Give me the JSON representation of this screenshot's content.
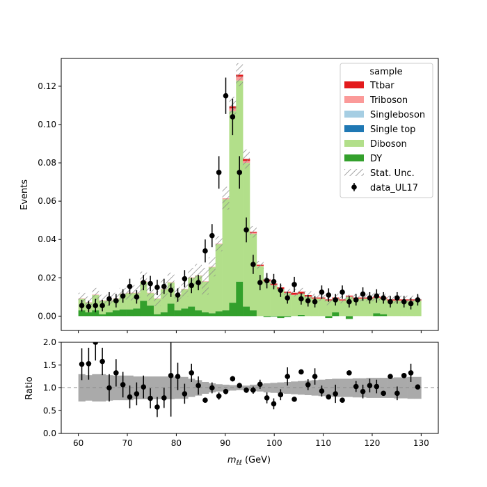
{
  "chart_data": [
    {
      "type": "bar",
      "ylabel": "Events",
      "ylim": [
        -0.0075,
        0.1345
      ],
      "yticks": [
        "0.00",
        "0.02",
        "0.04",
        "0.06",
        "0.08",
        "0.10",
        "0.12"
      ],
      "stacked": true,
      "legend": {
        "title": "sample",
        "placement": "top-right",
        "entries": [
          {
            "label": "Ttbar",
            "color": "#e31a1c"
          },
          {
            "label": "Triboson",
            "color": "#fb9a99"
          },
          {
            "label": "Singleboson",
            "color": "#a6cee3"
          },
          {
            "label": "Single top",
            "color": "#1f78b4"
          },
          {
            "label": "Diboson",
            "color": "#b2df8a"
          },
          {
            "label": "DY",
            "color": "#33a02c"
          },
          {
            "label": "Stat. Unc.",
            "color": "#888888"
          },
          {
            "label": "data_UL17",
            "color": "#000000"
          }
        ]
      },
      "bins": {
        "start": 60,
        "end": 130,
        "width": 1.4
      },
      "series": [
        {
          "name": "DY",
          "color": "#33a02c",
          "values": [
            0.003,
            0.002,
            0.003,
            0.001,
            0.002,
            0.003,
            0.0035,
            0.0035,
            0.004,
            0.008,
            0.0055,
            0.001,
            0.002,
            0.0065,
            0.003,
            0.004,
            0.005,
            0.003,
            0.002,
            0.0015,
            0.0025,
            0.003,
            0.007,
            0.018,
            0.005,
            0.003,
            0.0,
            -0.0005,
            -0.0003,
            -0.001,
            -0.0005,
            0.0,
            0.0005,
            0.0,
            0.0,
            0.0,
            -0.001,
            0.002,
            0.0,
            -0.0015,
            0.0,
            0.0,
            0.0,
            0.0015,
            0.001,
            0.0,
            0.0,
            0.0,
            0.0,
            0.0
          ]
        },
        {
          "name": "Diboson",
          "color": "#b2df8a",
          "values": [
            0.006,
            0.005,
            0.008,
            0.007,
            0.006,
            0.006,
            0.008,
            0.0085,
            0.008,
            0.01,
            0.0065,
            0.008,
            0.012,
            0.011,
            0.008,
            0.01,
            0.015,
            0.018,
            0.016,
            0.024,
            0.035,
            0.058,
            0.1,
            0.105,
            0.075,
            0.04,
            0.026,
            0.018,
            0.016,
            0.014,
            0.012,
            0.011,
            0.011,
            0.01,
            0.009,
            0.009,
            0.008,
            0.007,
            0.008,
            0.01,
            0.009,
            0.009,
            0.009,
            0.008,
            0.008,
            0.008,
            0.008,
            0.008,
            0.008,
            0.008
          ]
        },
        {
          "name": "Single top",
          "color": "#1f78b4",
          "values": [
            0,
            0,
            0,
            0,
            0,
            0,
            0,
            0,
            0,
            0,
            0,
            0,
            0,
            0,
            0,
            0,
            0,
            0,
            0,
            0,
            0,
            0,
            0,
            0,
            0,
            0,
            0,
            0,
            0,
            0,
            0,
            0,
            0,
            0,
            0,
            0,
            0,
            0,
            0,
            0,
            0,
            0,
            0,
            0,
            0,
            0,
            0,
            0,
            0,
            0
          ]
        },
        {
          "name": "Singleboson",
          "color": "#a6cee3",
          "values": [
            0,
            0,
            0,
            0,
            0,
            0,
            0,
            0,
            0,
            0,
            0,
            0,
            0,
            0,
            0,
            0,
            0,
            0,
            0,
            0,
            0,
            0,
            0,
            0,
            0,
            0,
            0,
            0,
            0,
            0,
            0,
            0,
            0,
            0,
            0,
            0,
            0,
            0,
            0,
            0,
            0,
            0,
            0,
            0,
            0,
            0,
            0,
            0,
            0,
            0
          ]
        },
        {
          "name": "Triboson",
          "color": "#fb9a99",
          "values": [
            0.0002,
            0.0002,
            0.0002,
            0.0002,
            0.0002,
            0.0002,
            0.0002,
            0.0002,
            0.0002,
            0.0002,
            0.0002,
            0.0002,
            0.0002,
            0.0002,
            0.0002,
            0.0002,
            0.0002,
            0.0002,
            0.0002,
            0.0002,
            0.0003,
            0.0005,
            0.0015,
            0.002,
            0.001,
            0.0005,
            0.0003,
            0.0002,
            0.0002,
            0.0002,
            0.0002,
            0.0002,
            0.0002,
            0.0002,
            0.0002,
            0.0002,
            0.0002,
            0.0002,
            0.0002,
            0.0002,
            0.0002,
            0.0002,
            0.0002,
            0.0002,
            0.0002,
            0.0002,
            0.0002,
            0.0002,
            0.0002,
            0.0002
          ]
        },
        {
          "name": "Ttbar",
          "color": "#e31a1c",
          "values": [
            0,
            0,
            0,
            0,
            0,
            0,
            0,
            0,
            0,
            0,
            0,
            0,
            0,
            0,
            0,
            0,
            0,
            0,
            0,
            0,
            0,
            0,
            0.001,
            0.001,
            0.001,
            0.0005,
            0.0005,
            0.001,
            0.0008,
            0.0008,
            0.0005,
            0.001,
            0.001,
            0.0008,
            0.0005,
            0.0005,
            0.0005,
            0.0005,
            0.0005,
            0.0005,
            0.0005,
            0.0005,
            0.0005,
            0.0005,
            0.0005,
            0.0005,
            0.0005,
            0.0005,
            0.0005,
            0.0005
          ]
        }
      ],
      "stat_unc": [
        0.003,
        0.003,
        0.0035,
        0.003,
        0.003,
        0.003,
        0.003,
        0.004,
        0.004,
        0.005,
        0.004,
        0.004,
        0.005,
        0.005,
        0.004,
        0.004,
        0.005,
        0.006,
        0.007,
        0.005,
        0.004,
        0.006,
        0.005,
        0.006,
        0.005,
        0.003,
        0.002,
        0.002,
        0.002,
        0.002,
        0.002,
        0.002,
        0.002,
        0.002,
        0.002,
        0.002,
        0.002,
        0.002,
        0.002,
        0.002,
        0.002,
        0.002,
        0.002,
        0.002,
        0.002,
        0.002,
        0.002,
        0.002,
        0.002,
        0.002
      ],
      "data": {
        "name": "data_UL17",
        "x": [
          60.7,
          62.1,
          63.5,
          64.9,
          66.3,
          67.7,
          69.1,
          70.5,
          71.9,
          73.3,
          74.7,
          76.1,
          77.5,
          78.9,
          80.3,
          81.7,
          83.1,
          84.5,
          85.9,
          87.3,
          88.7,
          90.1,
          91.5,
          92.9,
          94.3,
          95.7,
          97.1,
          98.5,
          99.9,
          101.3,
          102.7,
          104.1,
          105.5,
          106.9,
          108.3,
          109.7,
          111.1,
          112.5,
          113.9,
          115.3,
          116.7,
          118.1,
          119.5,
          120.9,
          122.3,
          123.7,
          125.1,
          126.5,
          127.9,
          129.3
        ],
        "y": [
          0.0055,
          0.005,
          0.0055,
          0.0055,
          0.009,
          0.008,
          0.0105,
          0.0155,
          0.01,
          0.0175,
          0.017,
          0.015,
          0.0155,
          0.0135,
          0.011,
          0.0195,
          0.016,
          0.0175,
          0.034,
          0.042,
          0.075,
          0.115,
          0.104,
          0.075,
          0.045,
          0.027,
          0.0175,
          0.0185,
          0.018,
          0.0135,
          0.0095,
          0.0165,
          0.009,
          0.008,
          0.0075,
          0.0125,
          0.011,
          0.0085,
          0.0125,
          0.0075,
          0.0085,
          0.0115,
          0.0095,
          0.0105,
          0.0095,
          0.0075,
          0.0095,
          0.0075,
          0.0065,
          0.0085
        ],
        "yerr": [
          0.003,
          0.003,
          0.0035,
          0.003,
          0.0035,
          0.0035,
          0.0035,
          0.004,
          0.0035,
          0.004,
          0.004,
          0.004,
          0.004,
          0.0035,
          0.0035,
          0.0045,
          0.004,
          0.004,
          0.006,
          0.006,
          0.0085,
          0.0095,
          0.0095,
          0.0085,
          0.0065,
          0.005,
          0.004,
          0.004,
          0.004,
          0.0035,
          0.003,
          0.004,
          0.003,
          0.003,
          0.003,
          0.0035,
          0.0035,
          0.003,
          0.0035,
          0.003,
          0.003,
          0.0035,
          0.003,
          0.0035,
          0.003,
          0.003,
          0.003,
          0.003,
          0.003,
          0.003
        ]
      }
    },
    {
      "type": "scatter",
      "ylabel": "Ratio",
      "xlabel_main": "m",
      "xlabel_sub": "ℓℓ",
      "xlabel_unit": " (GeV)",
      "xlim": [
        56.5,
        133.5
      ],
      "ylim": [
        0.0,
        2.0
      ],
      "xticks": [
        "60",
        "70",
        "80",
        "90",
        "100",
        "110",
        "120",
        "130"
      ],
      "yticks": [
        "0.0",
        "0.5",
        "1.0",
        "1.5",
        "2.0"
      ],
      "reference_line": 1.0,
      "band_color": "#aaaaaa",
      "band_halfwidth": [
        0.3,
        0.28,
        0.3,
        0.3,
        0.28,
        0.27,
        0.27,
        0.27,
        0.25,
        0.25,
        0.25,
        0.25,
        0.25,
        0.25,
        0.24,
        0.24,
        0.2,
        0.17,
        0.13,
        0.1,
        0.08,
        0.07,
        0.06,
        0.05,
        0.05,
        0.07,
        0.08,
        0.1,
        0.11,
        0.12,
        0.13,
        0.14,
        0.15,
        0.16,
        0.17,
        0.18,
        0.19,
        0.2,
        0.2,
        0.2,
        0.21,
        0.21,
        0.22,
        0.22,
        0.22,
        0.22,
        0.23,
        0.23,
        0.24,
        0.24
      ],
      "x": [
        60.7,
        62.1,
        63.5,
        64.9,
        66.3,
        67.7,
        69.1,
        70.5,
        71.9,
        73.3,
        74.7,
        76.1,
        77.5,
        78.9,
        80.3,
        81.7,
        83.1,
        84.5,
        85.9,
        87.3,
        88.7,
        90.1,
        91.5,
        92.9,
        94.3,
        95.7,
        97.1,
        98.5,
        99.9,
        101.3,
        102.7,
        104.1,
        105.5,
        106.9,
        108.3,
        109.7,
        111.1,
        112.5,
        113.9,
        115.3,
        116.7,
        118.1,
        119.5,
        120.9,
        122.3,
        123.7,
        125.1,
        126.5,
        127.9,
        129.3
      ],
      "ratio": [
        1.52,
        1.53,
        2.0,
        1.58,
        1.0,
        1.33,
        1.07,
        0.8,
        0.87,
        1.02,
        0.77,
        0.58,
        0.78,
        1.27,
        1.25,
        0.87,
        1.33,
        1.05,
        0.73,
        1.0,
        0.82,
        0.92,
        1.2,
        1.05,
        0.95,
        0.95,
        1.08,
        0.78,
        0.65,
        0.85,
        1.25,
        0.75,
        1.35,
        1.07,
        1.25,
        0.93,
        0.8,
        0.87,
        0.73,
        1.33,
        1.03,
        0.92,
        1.05,
        1.03,
        0.88,
        1.25,
        0.88,
        1.27,
        1.33,
        1.02
      ],
      "ratio_err": [
        0.35,
        0.35,
        0.4,
        0.3,
        0.3,
        0.3,
        0.28,
        0.25,
        0.25,
        0.25,
        0.22,
        0.22,
        0.22,
        0.9,
        0.3,
        0.22,
        0.2,
        0.2,
        0.05,
        0.12,
        0.08,
        0.06,
        0.06,
        0.06,
        0.06,
        0.08,
        0.1,
        0.12,
        0.12,
        0.12,
        0.2,
        0.05,
        0.05,
        0.12,
        0.18,
        0.12,
        0.05,
        0.2,
        0.05,
        0.05,
        0.12,
        0.15,
        0.15,
        0.15,
        0.05,
        0.05,
        0.15,
        0.05,
        0.2,
        0.05
      ]
    }
  ]
}
